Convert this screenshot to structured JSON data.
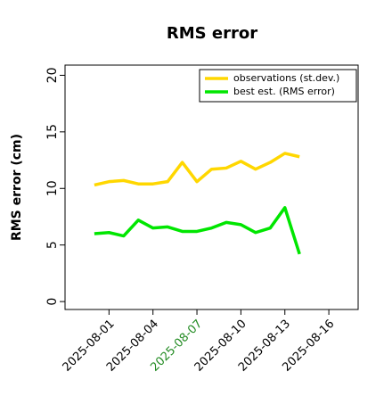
{
  "chart_data": {
    "type": "line",
    "title": "RMS error",
    "y_label": "RMS error (cm)",
    "x": [
      "2025-07-31",
      "2025-08-01",
      "2025-08-02",
      "2025-08-03",
      "2025-08-04",
      "2025-08-05",
      "2025-08-06",
      "2025-08-07",
      "2025-08-08",
      "2025-08-09",
      "2025-08-10",
      "2025-08-11",
      "2025-08-12",
      "2025-08-13",
      "2025-08-14"
    ],
    "series": [
      {
        "name": "observations (st.dev.)",
        "color": "#ffd700",
        "values": [
          10.3,
          10.6,
          10.7,
          10.4,
          10.4,
          10.6,
          12.3,
          10.6,
          11.7,
          11.8,
          12.4,
          11.7,
          12.3,
          13.1,
          12.8
        ]
      },
      {
        "name": "best est. (RMS error)",
        "color": "#00e600",
        "values": [
          6.0,
          6.1,
          5.8,
          7.2,
          6.5,
          6.6,
          6.2,
          6.2,
          6.5,
          7.0,
          6.8,
          6.1,
          6.5,
          8.3,
          4.2
        ]
      }
    ],
    "xlim": [
      "2025-07-29",
      "2025-08-18"
    ],
    "xticks": [
      "2025-08-01",
      "2025-08-04",
      "2025-08-07",
      "2025-08-10",
      "2025-08-13",
      "2025-08-16"
    ],
    "highlight_xtick": 2,
    "highlight_color": "#228b22",
    "ylim": [
      -0.7,
      20.9
    ],
    "yticks": [
      0,
      5,
      10,
      15,
      20
    ],
    "legend": "upper right"
  }
}
